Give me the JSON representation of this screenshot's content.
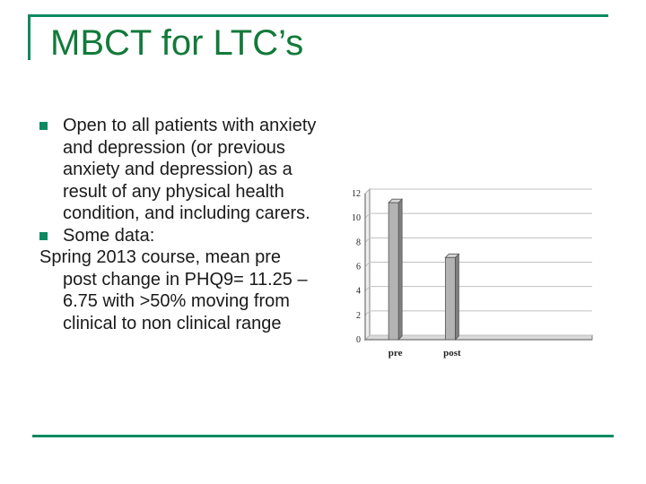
{
  "slide": {
    "title": "MBCT for LTC’s",
    "bullets": [
      "Open to all patients with anxiety and depression (or previous anxiety and depression) as a result of any physical health condition, and including carers.",
      "Some data:"
    ],
    "detail": "Spring 2013 course, mean pre post change in PHQ9= 11.25 – 6.75 with >50% moving from clinical to non clinical range"
  },
  "colors": {
    "accent": "#0f8a60",
    "title": "#127a3a",
    "bar": "#b3b3b3"
  },
  "chart_data": {
    "type": "bar",
    "categories": [
      "pre",
      "post"
    ],
    "values": [
      11.25,
      6.75
    ],
    "ylim": [
      0,
      12
    ],
    "yticks": [
      0,
      2,
      4,
      6,
      8,
      10,
      12
    ],
    "grid": true,
    "legend": "none",
    "title": "",
    "xlabel": "",
    "ylabel": ""
  }
}
